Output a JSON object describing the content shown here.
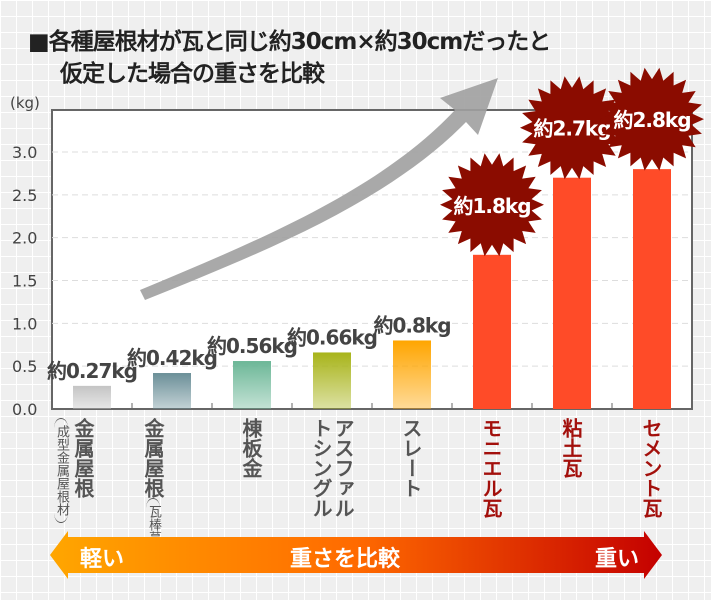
{
  "title": {
    "line1": "■各種屋根材が瓦と同じ約30cm×約30cmだったと",
    "line2": "仮定した場合の重さを比較"
  },
  "chart_data": {
    "type": "bar",
    "ylabel": "(kg)",
    "ylim": [
      0,
      3.0
    ],
    "yticks": [
      "0.0",
      "0.5",
      "1.0",
      "1.5",
      "2.0",
      "2.5",
      "3.0"
    ],
    "categories": [
      {
        "main": "金属屋根",
        "sub": "成型金属屋根材"
      },
      {
        "main": "金属屋根",
        "sub": "瓦棒葺き"
      },
      {
        "main": "棟板金",
        "sub": ""
      },
      {
        "main": "アスファルトシングル",
        "sub": ""
      },
      {
        "main": "スレート",
        "sub": ""
      },
      {
        "main": "モニエル瓦",
        "sub": ""
      },
      {
        "main": "粘土瓦",
        "sub": ""
      },
      {
        "main": "セメント瓦",
        "sub": ""
      }
    ],
    "values": [
      0.27,
      0.42,
      0.56,
      0.66,
      0.8,
      1.8,
      2.7,
      2.8
    ],
    "data_labels": [
      "約0.27kg",
      "約0.42kg",
      "約0.56kg",
      "約0.66kg",
      "約0.8kg",
      "約1.8kg",
      "約2.7kg",
      "約2.8kg"
    ],
    "colors": [
      "#c4c4c4",
      "#6b8f98",
      "#6cb797",
      "#a8b41a",
      "#ffa500",
      "#ff4b28",
      "#ff4b28",
      "#ff4b28"
    ],
    "highlight_color": "#8b0c00",
    "grid": true
  },
  "scale": {
    "light": "軽い",
    "center": "重さを比較",
    "heavy": "重い"
  }
}
